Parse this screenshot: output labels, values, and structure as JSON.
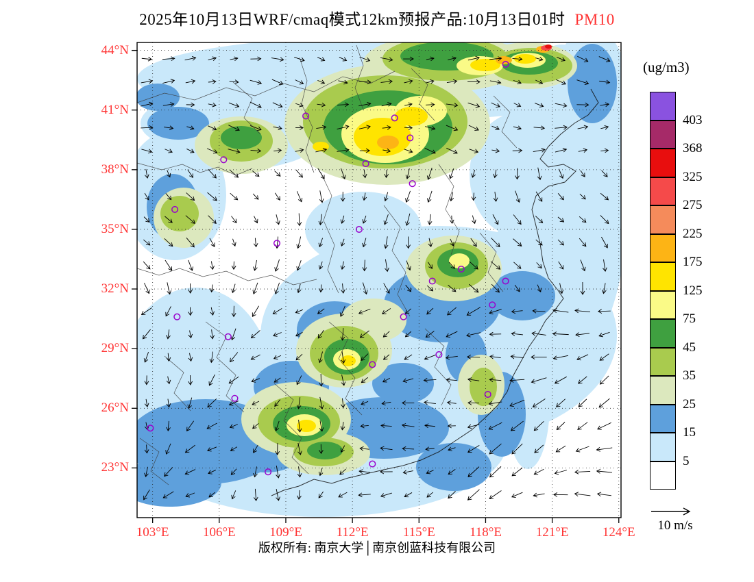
{
  "title": {
    "main": "2025年10月13日WRF/cmaq模式12km预报产品:10月13日01时",
    "species": "PM10"
  },
  "footer": {
    "text": "版权所有: 南京大学│南京创蓝科技有限公司"
  },
  "colors": {
    "axis_labels": "#ff3333",
    "species_label": "#ff3333",
    "station_marker": "#9902cc",
    "frame": "#000000",
    "graticule": "#222222",
    "boundaries": "#3a3a3a"
  },
  "chart_data": {
    "type": "heatmap",
    "title": "2025年10月13日WRF/cmaq模式12km预报产品:10月13日01时 PM10",
    "variable": "PM10",
    "units": "(ug/m3)",
    "model": "WRF/cmaq 12km forecast",
    "overlay": "wind vectors (arrows), reference 10 m/s",
    "axes": {
      "x": {
        "values": [
          103,
          106,
          109,
          112,
          115,
          118,
          121,
          124
        ],
        "labels": [
          "103°E",
          "106°E",
          "109°E",
          "112°E",
          "115°E",
          "118°E",
          "121°E",
          "124°E"
        ],
        "range": [
          102.3,
          124.1
        ]
      },
      "y": {
        "values": [
          44,
          41,
          38,
          35,
          32,
          29,
          26,
          23
        ],
        "labels": [
          "44°N",
          "41°N",
          "38°N",
          "35°N",
          "32°N",
          "29°N",
          "26°N",
          "23°N"
        ],
        "range": [
          20.5,
          44.4
        ]
      },
      "grid": "dotted"
    },
    "colorbar": {
      "title": "(ug/m3)",
      "levels": [
        403,
        368,
        325,
        275,
        225,
        175,
        125,
        75,
        45,
        35,
        25,
        15,
        5
      ],
      "cells": [
        {
          "key": "gt403",
          "range": "> 403",
          "color": "#8a52e0"
        },
        {
          "key": "368-403",
          "range": "368-403",
          "color": "#a62a68"
        },
        {
          "key": "325-368",
          "range": "325-368",
          "color": "#e80e0e"
        },
        {
          "key": "275-325",
          "range": "275-325",
          "color": "#f54a4a"
        },
        {
          "key": "225-275",
          "range": "225-275",
          "color": "#f58b5b"
        },
        {
          "key": "175-225",
          "range": "175-225",
          "color": "#fdb415"
        },
        {
          "key": "125-175",
          "range": "125-175",
          "color": "#ffe400"
        },
        {
          "key": "75-125",
          "range": "75-125",
          "color": "#fafa87"
        },
        {
          "key": "45-75",
          "range": "45-75",
          "color": "#3fa040"
        },
        {
          "key": "35-45",
          "range": "35-45",
          "color": "#a9cb4e"
        },
        {
          "key": "25-35",
          "range": "25-35",
          "color": "#dce8be"
        },
        {
          "key": "15-25",
          "range": "15-25",
          "color": "#5ea0dc"
        },
        {
          "key": "5-15",
          "range": "5-15",
          "color": "#c9e8fa"
        },
        {
          "key": "lt5",
          "range": "< 5",
          "color": "#ffffff"
        }
      ]
    },
    "wind_legend": {
      "label": "10 m/s"
    },
    "stations_lon_lat": [
      [
        118.9,
        43.3
      ],
      [
        109.9,
        40.7
      ],
      [
        113.9,
        40.6
      ],
      [
        114.6,
        39.6
      ],
      [
        106.2,
        38.5
      ],
      [
        112.6,
        38.3
      ],
      [
        114.7,
        37.3
      ],
      [
        104.0,
        36.0
      ],
      [
        108.6,
        34.3
      ],
      [
        112.3,
        35.0
      ],
      [
        115.6,
        32.4
      ],
      [
        116.9,
        33.0
      ],
      [
        118.9,
        32.4
      ],
      [
        118.3,
        31.2
      ],
      [
        104.1,
        30.6
      ],
      [
        106.4,
        29.6
      ],
      [
        114.3,
        30.6
      ],
      [
        112.9,
        28.2
      ],
      [
        115.9,
        28.7
      ],
      [
        106.7,
        26.5
      ],
      [
        118.1,
        26.7
      ],
      [
        102.9,
        25.0
      ],
      [
        108.2,
        22.8
      ],
      [
        112.9,
        23.2
      ]
    ]
  }
}
